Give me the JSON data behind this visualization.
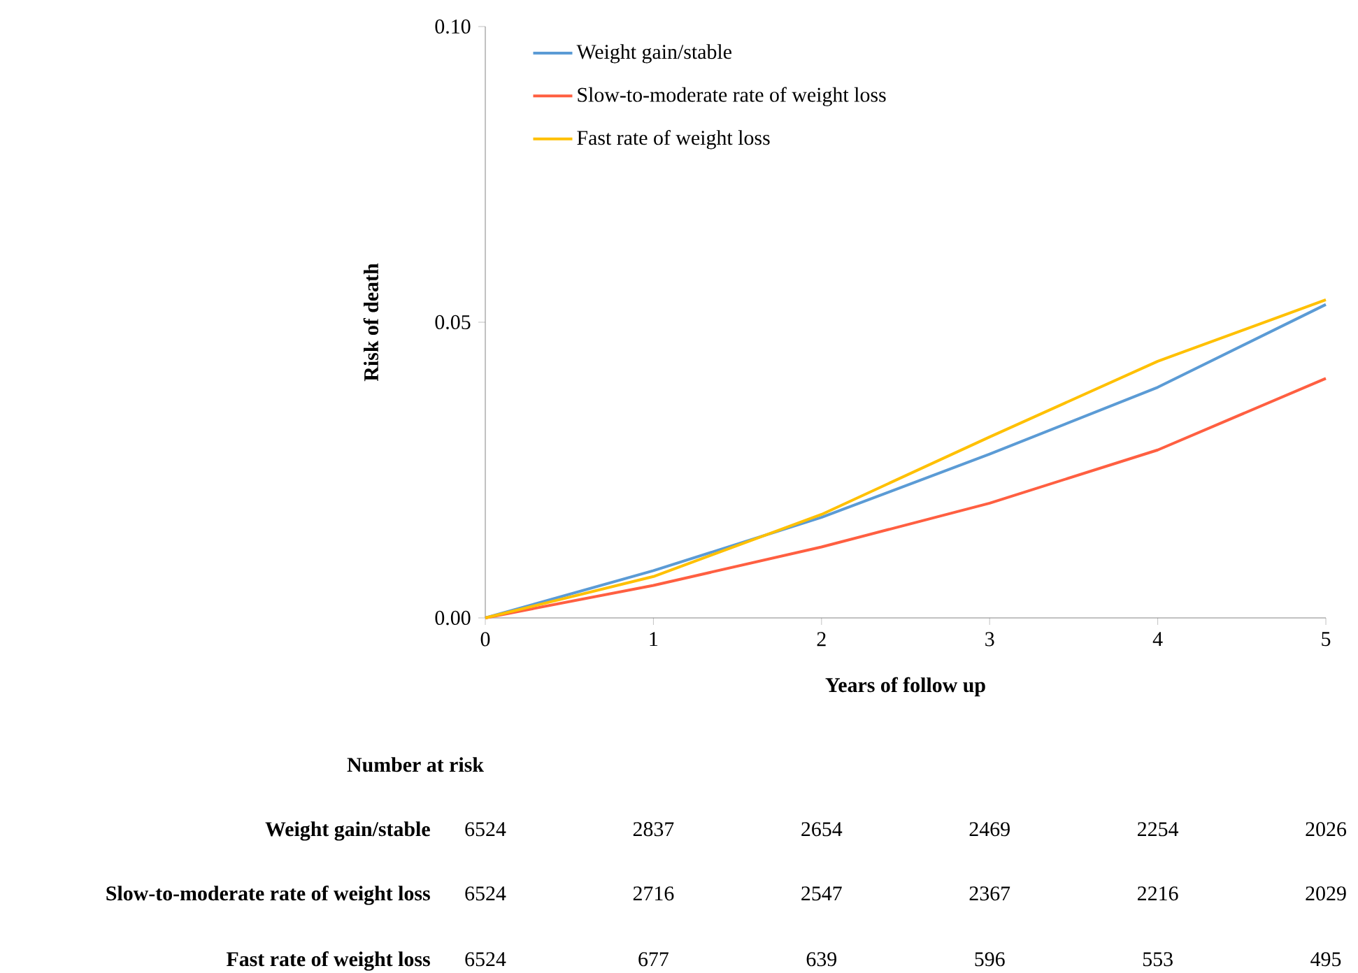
{
  "chart_data": {
    "type": "line",
    "xlabel": "Years of follow up",
    "ylabel": "Risk of death",
    "x": [
      0,
      1,
      2,
      3,
      4,
      5
    ],
    "series": [
      {
        "name": "Weight gain/stable",
        "color": "#5b9bd5",
        "values": [
          0,
          0.008,
          0.017,
          0.0277,
          0.039,
          0.053
        ]
      },
      {
        "name": "Slow-to-moderate rate of weight loss",
        "color": "#ff5f41",
        "values": [
          0,
          0.0055,
          0.012,
          0.0194,
          0.0284,
          0.0405
        ]
      },
      {
        "name": "Fast rate of weight loss",
        "color": "#ffc000",
        "values": [
          0,
          0.007,
          0.0175,
          0.0306,
          0.0434,
          0.0538
        ]
      }
    ],
    "xlim": [
      0,
      5
    ],
    "xticks": [
      0,
      1,
      2,
      3,
      4,
      5
    ],
    "ylim": [
      0,
      0.1
    ],
    "yticks": [
      {
        "value": 0,
        "label": "0.00"
      },
      {
        "value": 0.05,
        "label": "0.05"
      },
      {
        "value": 0.1,
        "label": "0.10"
      }
    ],
    "legend": "top left",
    "marker": "none",
    "line_style": "solid",
    "annotations": [
      "Number at risk",
      "Weight gain/stable",
      "6524",
      "2837",
      "2654",
      "2469",
      "2254",
      "2026",
      "Slow-to-moderate rate of weight loss",
      "6524",
      "2716",
      "2547",
      "2367",
      "2216",
      "2029",
      "Fast rate of weight loss",
      "6524",
      "677",
      "639",
      "596",
      "553",
      "495"
    ]
  }
}
